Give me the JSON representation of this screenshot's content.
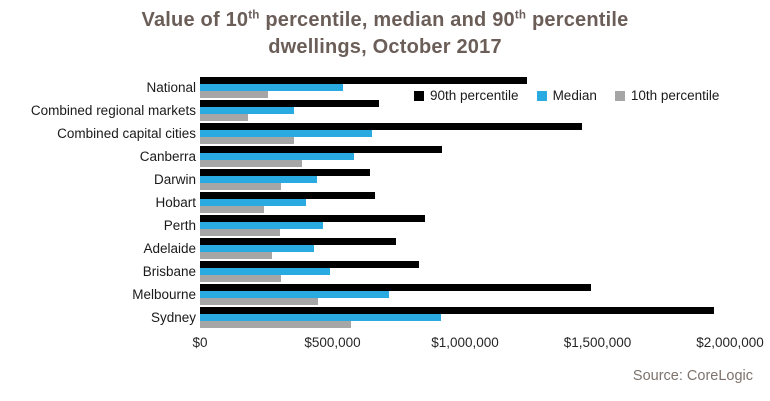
{
  "title": {
    "line1_pre": "Value of 10",
    "line1_sup1": "th",
    "line1_mid": " percentile, median and 90",
    "line1_sup2": "th",
    "line1_post": " percentile",
    "line2": "dwellings, October 2017"
  },
  "legend": {
    "items": [
      {
        "label": "90th percentile",
        "color": "#000000"
      },
      {
        "label": "Median",
        "color": "#29abe2"
      },
      {
        "label": "10th percentile",
        "color": "#a6a6a6"
      }
    ]
  },
  "source": "Source: CoreLogic",
  "chart_data": {
    "type": "bar",
    "orientation": "horizontal",
    "title": "Value of 10th percentile, median and 90th percentile dwellings, October 2017",
    "categories": [
      "National",
      "Combined regional markets",
      "Combined capital cities",
      "Canberra",
      "Darwin",
      "Hobart",
      "Perth",
      "Adelaide",
      "Brisbane",
      "Melbourne",
      "Sydney"
    ],
    "series": [
      {
        "name": "90th percentile",
        "color": "#000000",
        "values": [
          1235000,
          675000,
          1440000,
          915000,
          640000,
          660000,
          850000,
          740000,
          825000,
          1475000,
          1940000
        ]
      },
      {
        "name": "Median",
        "color": "#29abe2",
        "values": [
          540000,
          355000,
          650000,
          580000,
          440000,
          400000,
          465000,
          430000,
          490000,
          715000,
          910000
        ]
      },
      {
        "name": "10th percentile",
        "color": "#a6a6a6",
        "values": [
          255000,
          180000,
          355000,
          385000,
          305000,
          240000,
          300000,
          270000,
          305000,
          445000,
          570000
        ]
      }
    ],
    "xlim": [
      0,
      2000000
    ],
    "xtick_values": [
      0,
      500000,
      1000000,
      1500000,
      2000000
    ],
    "xtick_labels": [
      "$0",
      "$500,000",
      "$1,000,000",
      "$1,500,000",
      "$2,000,000"
    ],
    "legend_position": "top-right-inside",
    "grid": false,
    "source": "Source: CoreLogic"
  }
}
